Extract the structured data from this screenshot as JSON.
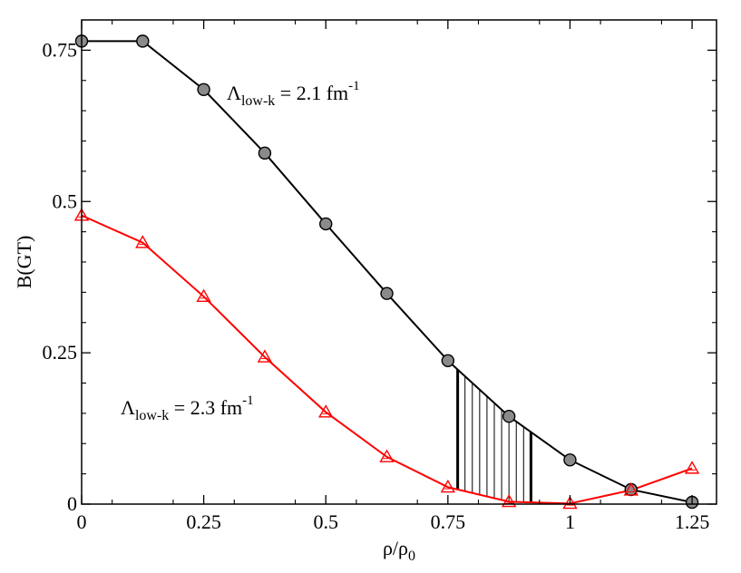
{
  "chart_data": {
    "type": "line",
    "title": "",
    "xlabel": "ρ/ρ",
    "xlabel_sub": "0",
    "ylabel": "B(GT)",
    "xlim": [
      0,
      1.3
    ],
    "ylim": [
      0,
      0.8
    ],
    "x_ticks": [
      0,
      0.25,
      0.5,
      0.75,
      1,
      1.25
    ],
    "x_tick_labels": [
      "0",
      "0.25",
      "0.5",
      "0.75",
      "1",
      "1.25"
    ],
    "y_ticks": [
      0,
      0.25,
      0.5,
      0.75
    ],
    "y_tick_labels": [
      "0",
      "0.25",
      "0.5",
      "0.75"
    ],
    "grid": false,
    "series": [
      {
        "name": "Λlow-k = 2.1 fm-1",
        "color": "#000000",
        "marker": "circle",
        "x": [
          0,
          0.125,
          0.25,
          0.375,
          0.5,
          0.625,
          0.75,
          0.875,
          1,
          1.125,
          1.25
        ],
        "y": [
          0.765,
          0.765,
          0.685,
          0.58,
          0.463,
          0.348,
          0.237,
          0.145,
          0.073,
          0.024,
          0.003
        ]
      },
      {
        "name": "Λlow-k = 2.3 fm-1",
        "color": "#ff0000",
        "marker": "triangle",
        "x": [
          0,
          0.125,
          0.25,
          0.375,
          0.5,
          0.625,
          0.75,
          0.875,
          1,
          1.125,
          1.25
        ],
        "y": [
          0.477,
          0.432,
          0.343,
          0.243,
          0.152,
          0.078,
          0.028,
          0.004,
          0.001,
          0.023,
          0.059
        ]
      }
    ],
    "shaded_band": {
      "x_from": 0.77,
      "x_to": 0.92,
      "hatch_count": 9
    },
    "annotations": [
      {
        "main": "Λ",
        "sub": "low-k",
        "rest": " = 2.1 fm",
        "sup": "-1",
        "series": 0
      },
      {
        "main": "Λ",
        "sub": "low-k",
        "rest": " = 2.3 fm",
        "sup": "-1",
        "series": 1
      }
    ]
  }
}
